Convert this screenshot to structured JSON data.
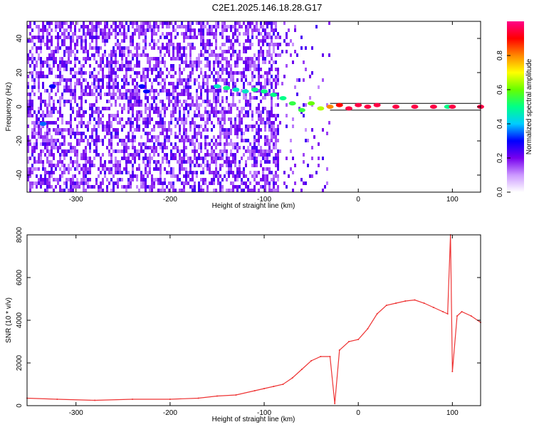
{
  "title": "C2E1.2025.146.18.28.G17",
  "chart_data": [
    {
      "type": "heatmap",
      "xlabel": "Height of straight line (km)",
      "ylabel": "Frequency (Hz)",
      "xlim": [
        -352,
        130
      ],
      "ylim": [
        -50,
        50
      ],
      "xticks": [
        -300,
        -200,
        -100,
        0,
        100
      ],
      "yticks": [
        -40,
        -20,
        0,
        20,
        40
      ],
      "colorbar": {
        "label": "Normalized spectral amplitude",
        "range": [
          0,
          1
        ],
        "ticks": [
          "0.0",
          "0.2",
          "0.4",
          "0.6",
          "0.8"
        ],
        "colors": [
          "#ffffff",
          "#cc99ff",
          "#7700ee",
          "#0000ff",
          "#00ccff",
          "#00ff88",
          "#66ff00",
          "#ffff00",
          "#ff8800",
          "#ff0000",
          "#ff0088"
        ]
      },
      "ridge": {
        "x": [
          -335,
          -325,
          -230,
          -225,
          -150,
          -140,
          -130,
          -120,
          -110,
          -100,
          -90,
          -80,
          -70,
          -60,
          -50,
          -40,
          -30,
          -20,
          -10,
          0,
          10,
          20,
          40,
          60,
          80,
          95,
          100,
          130
        ],
        "freq": [
          -10,
          12,
          12,
          9,
          12,
          11,
          10,
          9,
          10,
          9,
          7,
          5,
          2,
          -2,
          2,
          -1,
          0,
          1,
          -1,
          1,
          0,
          1,
          0,
          0,
          0,
          0,
          0,
          0
        ],
        "amplitude": [
          0.35,
          0.3,
          0.3,
          0.3,
          0.45,
          0.5,
          0.45,
          0.45,
          0.5,
          0.5,
          0.5,
          0.5,
          0.55,
          0.55,
          0.6,
          0.65,
          0.8,
          0.9,
          0.95,
          0.95,
          0.95,
          0.95,
          0.95,
          0.95,
          0.95,
          0.5,
          0.95,
          0.95
        ]
      },
      "reference_lines": [
        2,
        -2
      ]
    },
    {
      "type": "line",
      "xlabel": "Height of straight line (km)",
      "ylabel": "SNR (10 * v/v)",
      "xlim": [
        -352,
        130
      ],
      "ylim": [
        0,
        8000
      ],
      "xticks": [
        -300,
        -200,
        -100,
        0,
        100
      ],
      "yticks": [
        0,
        2000,
        4000,
        6000,
        8000
      ],
      "series": [
        {
          "color": "#ee3333",
          "x": [
            -352,
            -320,
            -280,
            -240,
            -200,
            -170,
            -150,
            -130,
            -110,
            -100,
            -90,
            -80,
            -70,
            -60,
            -50,
            -40,
            -30,
            -25,
            -20,
            -10,
            0,
            10,
            20,
            30,
            40,
            50,
            60,
            70,
            80,
            90,
            95,
            98,
            100,
            105,
            110,
            120,
            130
          ],
          "values": [
            350,
            300,
            250,
            300,
            300,
            350,
            450,
            500,
            700,
            800,
            900,
            1000,
            1300,
            1700,
            2100,
            2300,
            2300,
            100,
            2600,
            3000,
            3100,
            3600,
            4300,
            4700,
            4800,
            4900,
            4950,
            4800,
            4600,
            4400,
            4300,
            8000,
            1600,
            4200,
            4400,
            4200,
            3900
          ]
        }
      ]
    }
  ]
}
